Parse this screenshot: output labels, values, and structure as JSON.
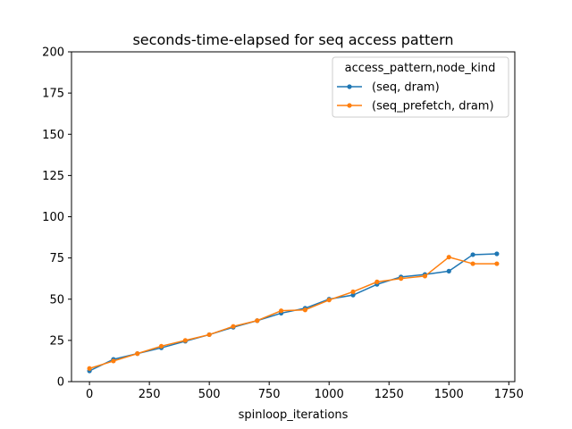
{
  "chart_data": {
    "type": "line",
    "title": "seconds-time-elapsed for seq access pattern",
    "xlabel": "spinloop_iterations",
    "ylabel": "",
    "xlim": [
      -75,
      1775
    ],
    "ylim": [
      0,
      200
    ],
    "xticks": [
      0,
      250,
      500,
      750,
      1000,
      1250,
      1500,
      1750
    ],
    "yticks": [
      0,
      25,
      50,
      75,
      100,
      125,
      150,
      175,
      200
    ],
    "grid": false,
    "legend": {
      "title": "access_pattern,node_kind",
      "placement": "top-right"
    },
    "x": [
      0,
      100,
      200,
      300,
      400,
      500,
      600,
      700,
      800,
      900,
      1000,
      1100,
      1200,
      1300,
      1400,
      1500,
      1600,
      1700
    ],
    "series": [
      {
        "name": "(seq, dram)",
        "color": "#1f77b4",
        "values": [
          6.5,
          13.5,
          17,
          20.5,
          24.5,
          28.5,
          33,
          37,
          41.5,
          44.5,
          50,
          52.5,
          59,
          63.5,
          65,
          67,
          77,
          77.5
        ]
      },
      {
        "name": "(seq_prefetch, dram)",
        "color": "#ff7f0e",
        "values": [
          8,
          12.5,
          17,
          21.5,
          25,
          28.5,
          33.5,
          37,
          43,
          43.5,
          49.5,
          54.5,
          60.5,
          62.5,
          64,
          75.5,
          71.5,
          71.5
        ]
      }
    ]
  }
}
